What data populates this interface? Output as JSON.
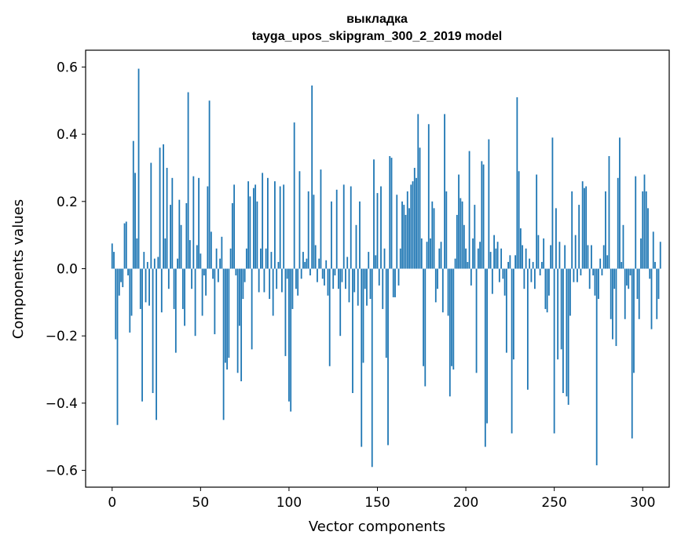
{
  "chart_data": {
    "type": "bar",
    "title": [
      "выкладка",
      "tayga_upos_skipgram_300_2_2019 model"
    ],
    "xlabel": "Vector components",
    "ylabel": "Components values",
    "xlim": [
      -15,
      315
    ],
    "ylim": [
      -0.65,
      0.65
    ],
    "xticks": [
      0,
      50,
      100,
      150,
      200,
      250,
      300
    ],
    "yticks": [
      -0.6,
      -0.4,
      -0.2,
      0.0,
      0.2,
      0.4,
      0.6
    ],
    "ytick_labels": [
      "−0.6",
      "−0.4",
      "−0.2",
      "0.0",
      "0.2",
      "0.4",
      "0.6"
    ],
    "grid": false,
    "color": "#1f77b4",
    "values": [
      0.075,
      0.05,
      -0.21,
      -0.465,
      -0.08,
      -0.04,
      -0.055,
      0.135,
      0.14,
      -0.02,
      -0.19,
      -0.14,
      0.38,
      0.285,
      0.09,
      0.595,
      -0.12,
      -0.395,
      0.05,
      -0.1,
      0.02,
      -0.11,
      0.315,
      -0.37,
      0.03,
      -0.45,
      0.035,
      0.36,
      -0.13,
      0.37,
      0.09,
      0.3,
      -0.06,
      0.19,
      0.27,
      -0.12,
      -0.25,
      0.03,
      0.205,
      0.13,
      -0.12,
      -0.17,
      0.195,
      0.525,
      0.085,
      -0.06,
      0.275,
      -0.2,
      0.07,
      0.27,
      0.045,
      -0.14,
      -0.02,
      -0.08,
      0.245,
      0.5,
      0.11,
      -0.03,
      -0.195,
      0.06,
      -0.04,
      0.03,
      0.095,
      -0.45,
      -0.28,
      -0.3,
      -0.265,
      0.06,
      0.195,
      0.25,
      -0.02,
      -0.31,
      -0.17,
      -0.335,
      -0.09,
      -0.04,
      0.06,
      0.26,
      0.215,
      -0.24,
      0.24,
      0.25,
      0.2,
      -0.07,
      0.06,
      0.285,
      -0.07,
      0.06,
      0.27,
      -0.09,
      0.05,
      -0.14,
      0.26,
      -0.06,
      0.02,
      0.245,
      -0.07,
      0.25,
      -0.26,
      -0.03,
      -0.395,
      -0.425,
      -0.12,
      0.435,
      -0.06,
      -0.08,
      0.29,
      -0.03,
      0.05,
      0.02,
      0.03,
      0.23,
      -0.02,
      0.545,
      0.22,
      0.07,
      -0.04,
      0.03,
      0.295,
      -0.03,
      -0.05,
      0.025,
      -0.08,
      -0.29,
      0.2,
      -0.06,
      -0.02,
      0.235,
      -0.06,
      -0.2,
      -0.04,
      0.25,
      -0.06,
      0.035,
      -0.1,
      0.245,
      -0.37,
      -0.07,
      0.13,
      -0.11,
      0.2,
      -0.53,
      -0.28,
      -0.06,
      -0.11,
      0.05,
      -0.09,
      -0.59,
      0.325,
      0.04,
      0.225,
      -0.05,
      0.245,
      -0.12,
      0.06,
      -0.265,
      -0.525,
      0.335,
      0.33,
      -0.085,
      -0.085,
      0.22,
      -0.05,
      0.06,
      0.2,
      0.19,
      0.16,
      0.23,
      0.18,
      0.25,
      0.26,
      0.3,
      0.27,
      0.46,
      0.36,
      0.09,
      -0.29,
      -0.35,
      0.08,
      0.43,
      0.09,
      0.2,
      0.18,
      -0.1,
      -0.06,
      0.06,
      0.08,
      -0.13,
      0.46,
      0.23,
      -0.14,
      -0.38,
      -0.29,
      -0.3,
      0.03,
      0.16,
      0.28,
      0.21,
      0.2,
      0.13,
      0.06,
      0.02,
      0.35,
      -0.05,
      0.09,
      0.19,
      -0.31,
      0.06,
      0.08,
      0.32,
      0.31,
      -0.53,
      -0.46,
      0.385,
      0.05,
      -0.075,
      0.1,
      0.06,
      0.08,
      -0.04,
      0.06,
      -0.03,
      -0.08,
      -0.25,
      0.02,
      0.04,
      -0.49,
      -0.27,
      0.04,
      0.51,
      0.29,
      0.12,
      0.07,
      -0.06,
      0.06,
      -0.36,
      0.03,
      -0.04,
      0.02,
      -0.06,
      0.28,
      0.1,
      -0.02,
      0.02,
      0.09,
      -0.12,
      -0.13,
      -0.08,
      0.07,
      0.39,
      -0.49,
      0.18,
      -0.27,
      0.08,
      -0.24,
      -0.37,
      0.07,
      -0.38,
      -0.405,
      -0.14,
      0.23,
      -0.04,
      0.1,
      -0.04,
      0.19,
      -0.02,
      0.26,
      0.24,
      0.245,
      0.07,
      -0.06,
      0.07,
      -0.02,
      -0.08,
      -0.585,
      -0.09,
      0.03,
      -0.02,
      0.07,
      0.23,
      0.04,
      0.335,
      -0.15,
      -0.21,
      -0.06,
      -0.23,
      0.27,
      0.39,
      0.02,
      0.13,
      -0.15,
      -0.05,
      -0.06,
      -0.02,
      -0.505,
      -0.31,
      0.275,
      -0.09,
      -0.15,
      0.09,
      0.23,
      0.28,
      0.23,
      0.18,
      -0.03,
      -0.18,
      0.11,
      0.02,
      -0.15,
      -0.09,
      0.08
    ]
  }
}
